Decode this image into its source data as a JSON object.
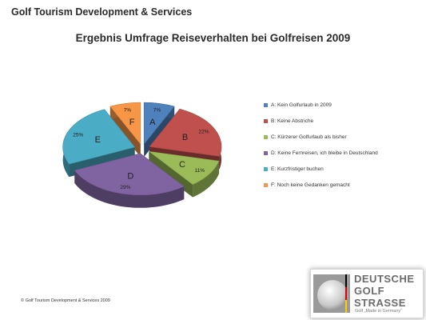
{
  "header": {
    "company": "Golf Tourism Development & Services"
  },
  "chart_data": {
    "type": "pie",
    "title": "Ergebnis Umfrage Reiseverhalten bei Golfreisen 2009",
    "slices": [
      {
        "letter": "A",
        "label": "A: Kein Golfurlaub in 2009",
        "value": 7,
        "value_label": "7%",
        "color": "#4f81bd"
      },
      {
        "letter": "B",
        "label": "B: Keine Abstriche",
        "value": 22,
        "value_label": "22%",
        "color": "#c0504d"
      },
      {
        "letter": "C",
        "label": "C: Kürzerer Golfurlaub als bisher",
        "value": 11,
        "value_label": "11%",
        "color": "#9bbb59"
      },
      {
        "letter": "D",
        "label": "D: Keine Fernreisen, ich bleibe in Deutschland",
        "value": 29,
        "value_label": "29%",
        "color": "#8064a2"
      },
      {
        "letter": "E",
        "label": "E: Kurzfristiger buchen",
        "value": 25,
        "value_label": "25%",
        "color": "#4bacc6"
      },
      {
        "letter": "F",
        "label": "F: Noch keine Gedanken gemacht",
        "value": 7,
        "value_label": "7%",
        "color": "#f79646"
      }
    ],
    "legend_position": "right",
    "style": "3d-exploded"
  },
  "footer": {
    "copyright": "© Golf Tourism Development & Services 2009"
  },
  "logo": {
    "line1": "DEUTSCHE",
    "line2": "GOLF",
    "line3": "STRASSE",
    "tagline": "Golf „Made in Germany“"
  }
}
